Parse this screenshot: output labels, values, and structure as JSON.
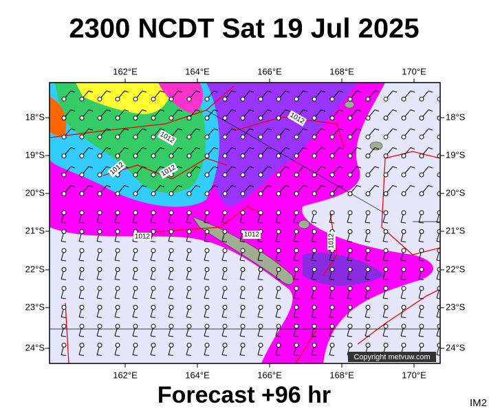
{
  "title": "2300 NCDT Sat 19 Jul 2025",
  "footer": "Forecast +96 hr",
  "corner_label": "IM2",
  "copyright": "Copyright metvuw.com",
  "longitude_labels": [
    "162°E",
    "164°E",
    "166°E",
    "168°E",
    "170°E"
  ],
  "latitude_labels": [
    "18°S",
    "19°S",
    "20°S",
    "21°S",
    "22°S",
    "23°S",
    "24°S"
  ],
  "contour_labels": [
    "1012",
    "1012",
    "1012",
    "1012",
    "1012",
    "1012",
    "1012"
  ]
}
